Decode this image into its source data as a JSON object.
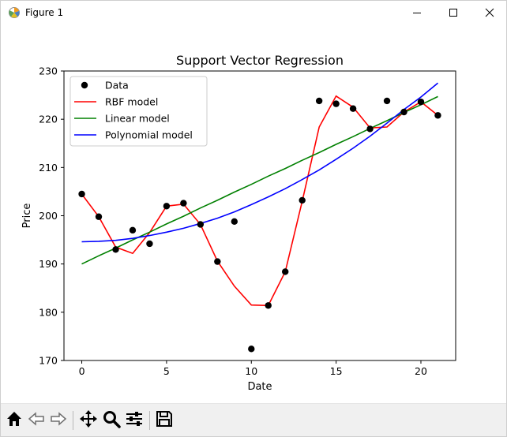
{
  "window": {
    "title": "Figure 1",
    "icons": {
      "app": "matplotlib-icon",
      "minimize": "minimize-icon",
      "maximize": "maximize-icon",
      "close": "close-icon"
    }
  },
  "toolbar": {
    "buttons": [
      {
        "name": "home-button",
        "icon": "home-icon"
      },
      {
        "name": "back-button",
        "icon": "back-arrow-icon"
      },
      {
        "name": "forward-button",
        "icon": "forward-arrow-icon"
      },
      {
        "name": "pan-button",
        "icon": "move-icon"
      },
      {
        "name": "zoom-button",
        "icon": "zoom-icon"
      },
      {
        "name": "configure-subplots-button",
        "icon": "sliders-icon"
      },
      {
        "name": "save-button",
        "icon": "save-icon"
      }
    ]
  },
  "chart_data": {
    "type": "line",
    "title": "Support Vector Regression",
    "xlabel": "Date",
    "ylabel": "Price",
    "xlim": [
      -1.05,
      22.05
    ],
    "ylim": [
      170,
      230
    ],
    "xticks": [
      0,
      5,
      10,
      15,
      20
    ],
    "yticks": [
      170,
      180,
      190,
      200,
      210,
      220,
      230
    ],
    "grid": false,
    "legend_position": "upper-left",
    "x": [
      0,
      1,
      2,
      3,
      4,
      5,
      6,
      7,
      8,
      9,
      10,
      11,
      12,
      13,
      14,
      15,
      16,
      17,
      18,
      19,
      20,
      21
    ],
    "scatter": {
      "name": "Data",
      "color": "#000000",
      "values": [
        204.5,
        199.8,
        193.0,
        197.0,
        194.2,
        202.0,
        202.6,
        198.2,
        190.5,
        198.8,
        172.4,
        181.4,
        188.4,
        203.2,
        223.8,
        223.2,
        222.2,
        218.0,
        223.8,
        221.5,
        223.6,
        220.8
      ]
    },
    "series": [
      {
        "name": "RBF model",
        "color": "#ff0000",
        "values": [
          204.5,
          199.8,
          193.5,
          192.2,
          196.5,
          202.0,
          202.4,
          198.2,
          190.6,
          185.4,
          181.5,
          181.4,
          188.4,
          203.0,
          218.4,
          224.8,
          222.5,
          218.2,
          218.4,
          221.5,
          223.6,
          220.8
        ]
      },
      {
        "name": "Linear model",
        "color": "#008000",
        "values": [
          190.0,
          191.7,
          193.3,
          195.0,
          196.6,
          198.3,
          199.9,
          201.6,
          203.2,
          204.9,
          206.5,
          208.2,
          209.8,
          211.5,
          213.1,
          214.8,
          216.4,
          218.1,
          219.7,
          221.4,
          223.0,
          224.7
        ]
      },
      {
        "name": "Polynomial model",
        "color": "#0000ff",
        "values": [
          194.6,
          194.7,
          194.9,
          195.3,
          195.9,
          196.6,
          197.4,
          198.4,
          199.5,
          200.8,
          202.3,
          203.9,
          205.6,
          207.5,
          209.5,
          211.7,
          214.0,
          216.5,
          219.2,
          222.0,
          224.6,
          227.5
        ]
      }
    ]
  }
}
